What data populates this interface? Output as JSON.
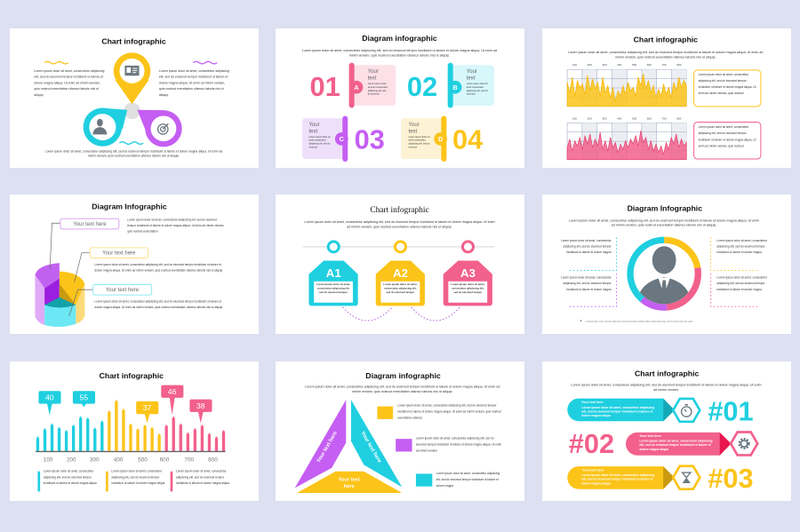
{
  "colors": {
    "background": "#dde0f1",
    "cyan": "#1fcfe0",
    "yellow": "#fcc419",
    "pink": "#f2608c",
    "purple": "#c55ef2",
    "gray": "#6b7780"
  },
  "slides": [
    {
      "title": "Chart infographic",
      "left_text": "Lorem ipsum dolor sit amet, consectetur adipiscing elit, sed do eiusmod tempor incididunt ut labore et dolore magna aliqua. Ut enim ad minim veniam, quis nostrud exercitation ullamco laboris nisi ut aliquip.",
      "right_text": "Lorem ipsum dolor sit amet, consectetur adipiscing elit, sed do eiusmod tempor incididunt ut labore et dolore magna aliqua. Ut enim ad minim veniam, quis nostrud exercitation ullamco laboris nisi ut aliquip.",
      "bottom_text": "Lorem ipsum dolor sit amet, consectetur adipiscing elit, sed do eiusmod tempor incididunt ut labore et dolore magna aliqua. Ut enim ad minim veniam, quis nostrud exercitation ullamco laboris nisi ut aliquip.",
      "icons": [
        "id-card-icon",
        "businessman-icon",
        "target-icon"
      ]
    },
    {
      "title": "Diagram infographic",
      "intro": "Lorem ipsum dolor sit amet, consectetur adipiscing elit, sed do eiusmod tempor incididunt ut labore et dolore magna aliqua. Ut enim ad minim veniam, quis nostrud exercitation ullamco laboris nisi ut aliquip.",
      "items": [
        {
          "number": "01",
          "letter": "A",
          "heading_1": "Your",
          "heading_2": "text",
          "text": "Lorem ipsum dolor sit amet consectetur adipiscing elit, sed do eiusmod"
        },
        {
          "number": "02",
          "letter": "B",
          "heading_1": "Your",
          "heading_2": "text",
          "text": "Lorem ipsum dolor sit amet consectetur adipiscing elit, sed do eiusmod"
        },
        {
          "number": "03",
          "letter": "C",
          "heading_1": "Your",
          "heading_2": "text",
          "text": "Lorem ipsum dolor sit amet consectetur adipiscing elit, sed do eiusmod"
        },
        {
          "number": "04",
          "letter": "D",
          "heading_1": "Your",
          "heading_2": "text",
          "text": "Lorem ipsum dolor sit amet consectetur adipiscing elit, sed do eiusmod"
        }
      ]
    },
    {
      "title": "Chart infographic",
      "intro": "Lorem ipsum dolor sit amet, consectetur adipiscing elit, sed do eiusmod tempor incididunt ut labore et dolore magna aliqua. Ut enim ad minim veniam, quis nostrud exercitation ullamco laboris nisi ut aliquip.",
      "box_text_1": "Lorem ipsum dolor sit amet, consectetur adipiscing elit, sed do eiusmod tempor incididunt ut labore et dolore magna aliqua. Ut enim ad minim veniam, quis nostrud",
      "box_text_2": "Lorem ipsum dolor sit amet, consectetur adipiscing elit, sed do eiusmod tempor incididunt ut labore et dolore magna aliqua. Ut enim ad minim veniam, quis nostrud"
    },
    {
      "title": "Diagram Infographic",
      "labels": [
        "Your text here",
        "Your text here",
        "Your text here"
      ],
      "texts": [
        "Lorem ipsum dolor sit amet, consectetur adipiscing elit, sed do eiusmod tempor incididunt ut labore et dolore magna aliqua. Ut enim ad minim veniam, quis nostrud exercitation",
        "Lorem ipsum dolor sit amet, consectetur adipiscing elit, sed do eiusmod tempor incididunt ut labore et dolore magna aliqua. Ut enim ad minim veniam, quis nostrud exercitation ullamco laboris nisi ut aliquip.",
        "Lorem ipsum dolor sit amet, consectetur adipiscing elit, sed do eiusmod tempor incididunt ut labore et dolore magna aliqua. Ut enim ad minim veniam, quis nostrud exercitation ullamco laboris nisi ut aliquip."
      ]
    },
    {
      "title": "Chart infographic",
      "intro": "Lorem ipsum dolor sit amet, consectetur adipiscing elit, sed do eiusmod tempor incididunt ut labore et dolore magna aliqua. Ut enim ad minim veniam, quis nostrud exercitation ullamco laboris nisi ut aliquip.",
      "steps": [
        {
          "label": "A1",
          "text": "Lorem ipsum dolor sit amet, consectetur adipiscing elit, sed do eiusmod tempor"
        },
        {
          "label": "A2",
          "text": "Lorem ipsum dolor sit amet, consectetur adipiscing elit, sed do eiusmod tempor"
        },
        {
          "label": "A3",
          "text": "Lorem ipsum dolor sit amet, consectetur adipiscing elit, sed do eiusmod tempor"
        }
      ]
    },
    {
      "title": "Diagram Infographic",
      "intro": "Lorem ipsum dolor sit amet, consectetur adipiscing elit, sed do eiusmod tempor incididunt ut labore et dolore magna aliqua. Ut enim ad minim veniam, quis nostrud exercitation ullamco laboris nisi ut aliquip.",
      "texts": [
        "Lorem ipsum dolor sit amet, consectetur adipiscing elit, sed do eiusmod tempor incididunt ut labore et dolore magna",
        "Lorem ipsum dolor sit amet, consectetur adipiscing elit, sed do eiusmod tempor incididunt ut labore et dolore magna",
        "Lorem ipsum dolor sit amet, consectetur adipiscing elit, sed do eiusmod tempor incididunt ut labore et dolore magna",
        "Lorem ipsum dolor sit amet, consectetur adipiscing elit, sed do eiusmod tempor incididunt ut labore et dolore magna"
      ],
      "footnote": "Lorem ipsum dolor sit amet, consectetur adipiscing elit, sed do eiusmod tempor incididunt ut labore et dolore magna aliqua. Ut enim ad minim veniam, quis nostrud"
    },
    {
      "title": "Chart infographic",
      "legend_texts": [
        "Lorem ipsum dolor sit amet, consectetur adipiscing elit, sed do eiusmod tempor incididunt ut labore et dolore magna aliqua",
        "Lorem ipsum dolor sit amet, consectetur adipiscing elit, sed do eiusmod tempor incididunt ut labore et dolore magna aliqua",
        "Lorem ipsum dolor sit amet, consectetur adipiscing elit, sed do eiusmod tempor incididunt ut labore et dolore magna aliqua"
      ]
    },
    {
      "title": "Diagram infographic",
      "intro": "Lorem ipsum dolor sit amet, consectetur adipiscing elit, sed do eiusmod tempor incididunt ut labore et dolore magna aliqua. Ut enim ad minim veniam, quis nostrud exercitation ullamco laboris nisi ut aliquip.",
      "segment_labels": [
        "Your text here",
        "Your text here",
        "Your text here"
      ],
      "texts": [
        "Lorem ipsum dolor sit amet, consectetur adipiscing elit, sed do eiusmod tempor incididunt ut labore et dolore magna aliqua. Ut enim ad minim veniam, quis nostrud exercitation ullamco",
        "Lorem ipsum dolor sit amet, consectetur adipiscing elit, sed do eiusmod tempor incididunt ut labore et dolore magna aliqua. Ut enim ad minim veniam",
        "Lorem ipsum dolor sit amet, consectetur adipiscing elit, sed do eiusmod tempor incididunt ut labore et dolore magna"
      ]
    },
    {
      "title": "Chart infographic",
      "intro": "Lorem ipsum dolor sit amet, consectetur adipiscing elit, sed do eiusmod tempor incididunt ut labore et dolore magna aliqua. Ut enim ad minim veniam.",
      "rows": [
        {
          "number": "#01",
          "heading": "Your text here",
          "text": "Lorem ipsum dolor sit amet, consectetur adipiscing elit, sed do eiusmod tempor incididunt ut labore et dolore magna aliqua",
          "icon": "stopwatch-icon"
        },
        {
          "number": "#02",
          "heading": "Your text here",
          "text": "Lorem ipsum dolor sit amet, consectetur adipiscing elit, sed do eiusmod tempor incididunt ut labore et dolore magna aliqua",
          "icon": "gear-icon"
        },
        {
          "number": "#03",
          "heading": "Your text here",
          "text": "Lorem ipsum dolor sit amet, consectetur adipiscing elit, sed do eiusmod tempor incididunt ut labore et dolore magna aliqua",
          "icon": "hourglass-icon"
        }
      ]
    }
  ],
  "chart_data": [
    {
      "type": "area",
      "x_ticks": [
        "100",
        "200",
        "300",
        "400",
        "500",
        "600",
        "700",
        "800"
      ],
      "grid": true,
      "color": "#fcc419",
      "values": [
        70,
        40,
        85,
        30,
        75,
        55,
        65,
        35,
        90,
        45,
        80,
        50,
        70,
        30,
        85,
        40,
        60,
        25,
        55,
        15,
        45,
        30,
        60,
        35,
        70,
        45,
        55,
        30,
        85,
        60,
        95,
        50,
        75,
        40,
        60,
        25,
        50,
        30,
        65,
        35,
        55,
        25,
        70,
        45,
        85,
        55,
        75,
        60
      ]
    },
    {
      "type": "area",
      "x_ticks": [
        "100",
        "200",
        "300",
        "400",
        "500",
        "600",
        "700",
        "800"
      ],
      "grid": true,
      "color": "#f2608c",
      "values": [
        35,
        60,
        25,
        55,
        40,
        65,
        30,
        70,
        45,
        75,
        35,
        60,
        40,
        80,
        30,
        55,
        25,
        65,
        35,
        50,
        20,
        45,
        30,
        55,
        35,
        60,
        45,
        70,
        40,
        85,
        50,
        65,
        30,
        55,
        25,
        45,
        20,
        40,
        15,
        50,
        30,
        65,
        45,
        75,
        35,
        60,
        40,
        50
      ]
    },
    {
      "type": "bar",
      "x_ticks": [
        "100",
        "200",
        "300",
        "400",
        "500",
        "600",
        "700",
        "800"
      ],
      "grid": false,
      "series": [
        {
          "color": "#1fcfe0",
          "values": [
            26,
            40,
            48,
            42,
            37,
            46,
            60,
            58,
            41,
            53
          ]
        },
        {
          "color": "#fcc419",
          "values": [
            70,
            88,
            73,
            48,
            40,
            46,
            42,
            31
          ]
        },
        {
          "color": "#f2608c",
          "values": [
            46,
            60,
            48,
            33,
            40,
            46,
            32,
            26,
            37
          ]
        }
      ],
      "callouts": [
        {
          "label": "40",
          "color": "#1fcfe0"
        },
        {
          "label": "55",
          "color": "#1fcfe0"
        },
        {
          "label": "37",
          "color": "#fcc419"
        },
        {
          "label": "46",
          "color": "#f2608c"
        },
        {
          "label": "38",
          "color": "#f2608c"
        }
      ]
    }
  ]
}
